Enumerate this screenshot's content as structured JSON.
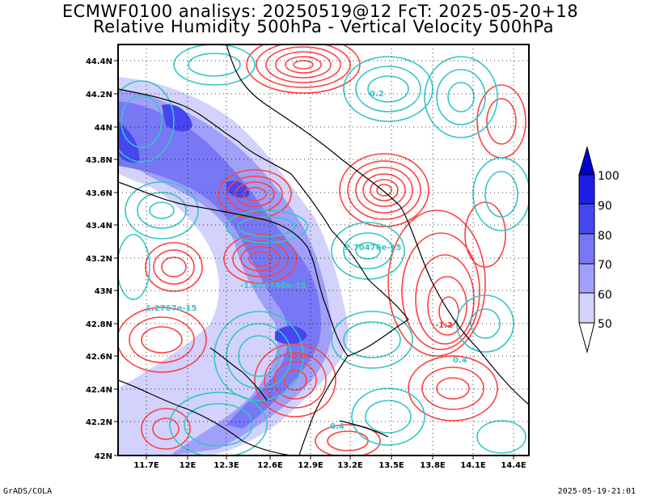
{
  "header": {
    "line1": "ECMWF0100 analisys: 20250519@12 FcT: 2025-05-20+18",
    "line2": "Relative Humidity 500hPa - Vertical Velocity 500hPa"
  },
  "footer": {
    "left": "GrADS/COLA",
    "right": "2025-05-19-21:01"
  },
  "map": {
    "lon_ticks": [
      "11.7E",
      "12E",
      "12.3E",
      "12.6E",
      "12.9E",
      "13.2E",
      "13.5E",
      "13.8E",
      "14.1E",
      "14.4E"
    ],
    "lat_ticks": [
      "44.4N",
      "44.2N",
      "44N",
      "43.8N",
      "43.6N",
      "43.4N",
      "43.2N",
      "43N",
      "42.8N",
      "42.6N",
      "42.4N",
      "42.2N",
      "42N"
    ],
    "contour_labels": [
      "0.2",
      "-0.6",
      "-1.2",
      "0.4",
      "0.4",
      "-1.419740e-15",
      "2.70476e-15",
      "1.2767e-15"
    ],
    "colors": {
      "positive": "#34c6c6",
      "negative": "#ff4141",
      "border": "#000000"
    }
  },
  "colorbar": {
    "labels": [
      "100",
      "90",
      "80",
      "70",
      "60",
      "50"
    ],
    "colors": [
      "#1e1ee6",
      "#4646f0",
      "#7878f5",
      "#a0a0fa",
      "#d2d2fc",
      "#ffffff"
    ]
  }
}
